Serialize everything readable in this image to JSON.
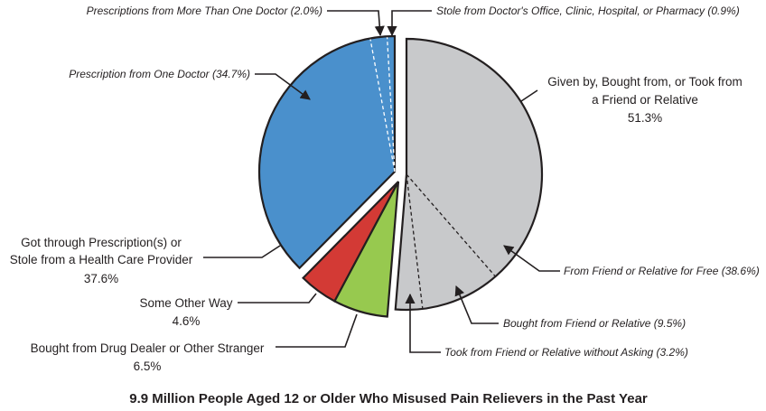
{
  "chart_data": {
    "type": "pie",
    "title": "9.9 Million People Aged 12 or Older Who Misused Pain Relievers in the Past Year",
    "slices": [
      {
        "key": "friend",
        "label_lines": [
          "Given by, Bought from, or Took from",
          "a Friend or Relative"
        ],
        "value": 51.3,
        "value_label": "51.3%",
        "color": "#c8c9cb",
        "subslices": [
          {
            "label": "From Friend or Relative for Free (38.6%)",
            "value": 38.6
          },
          {
            "label": "Bought from Friend or Relative (9.5%)",
            "value": 9.5
          },
          {
            "label": "Took from Friend or Relative without Asking (3.2%)",
            "value": 3.2
          }
        ]
      },
      {
        "key": "dealer",
        "label_lines": [
          "Bought from Drug Dealer or Other Stranger"
        ],
        "value": 6.5,
        "value_label": "6.5%",
        "color": "#97c94f"
      },
      {
        "key": "other",
        "label_lines": [
          "Some Other Way"
        ],
        "value": 4.6,
        "value_label": "4.6%",
        "color": "#d33a35"
      },
      {
        "key": "prescription",
        "label_lines": [
          "Got through Prescription(s) or",
          "Stole from a Health Care Provider"
        ],
        "value": 37.6,
        "value_label": "37.6%",
        "color": "#4a90cc",
        "subslices": [
          {
            "label": "Prescription from One Doctor (34.7%)",
            "value": 34.7
          },
          {
            "label": "Prescriptions from More Than One Doctor (2.0%)",
            "value": 2.0
          },
          {
            "label": "Stole from Doctor's Office, Clinic, Hospital, or Pharmacy (0.9%)",
            "value": 0.9
          }
        ]
      }
    ]
  }
}
